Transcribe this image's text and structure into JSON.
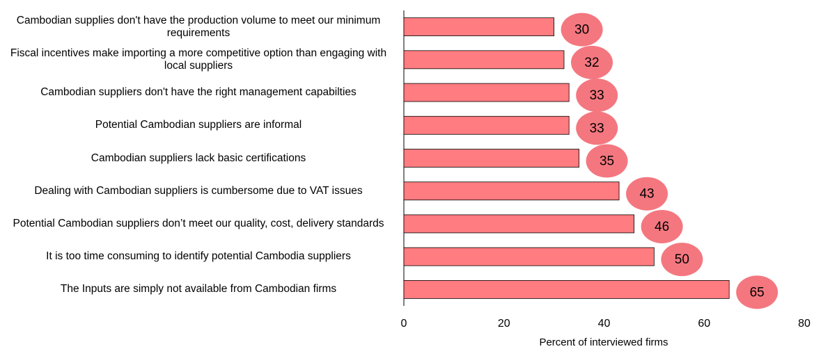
{
  "chart_data": {
    "type": "bar",
    "orientation": "horizontal",
    "categories": [
      "Cambodian supplies don't have the production volume to meet our minimum requirements",
      "Fiscal incentives make importing a more competitive option than engaging with local suppliers",
      "Cambodian suppliers don't have the right management capabilties",
      "Potential Cambodian suppliers are informal",
      "Cambodian suppliers lack basic certifications",
      "Dealing with Cambodian suppliers is cumbersome due to VAT issues",
      "Potential Cambodian suppliers don’t meet our quality, cost, delivery standards",
      "It is too time consuming to identify potential Cambodia suppliers",
      "The Inputs are simply not available from Cambodian firms"
    ],
    "values": [
      30,
      32,
      33,
      33,
      35,
      43,
      46,
      50,
      65
    ],
    "color": "#ff7c80",
    "label_color": "#f4777f",
    "xlabel": "Percent of interviewed firms",
    "xlim": [
      0,
      80
    ],
    "xticks": [
      0,
      20,
      40,
      60,
      80
    ]
  }
}
